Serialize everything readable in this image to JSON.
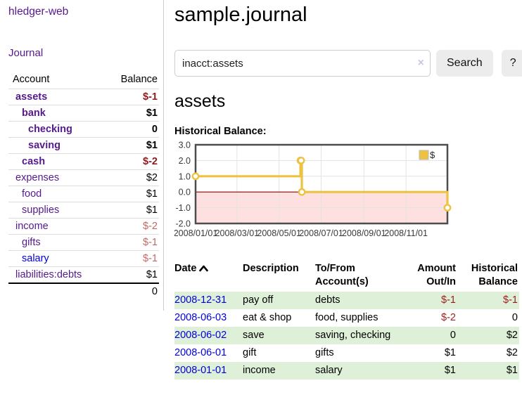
{
  "app": {
    "title": "hledger-web"
  },
  "sidebar": {
    "journal_label": "Journal",
    "accounts_table": {
      "headers": {
        "account": "Account",
        "balance": "Balance"
      },
      "rows": [
        {
          "account": "assets",
          "level": 0,
          "emph": true,
          "blue": false,
          "balance": "$-1",
          "neg": true
        },
        {
          "account": "bank",
          "level": 1,
          "emph": true,
          "blue": false,
          "balance": "$1",
          "neg": false
        },
        {
          "account": "checking",
          "level": 2,
          "emph": true,
          "blue": false,
          "balance": "0",
          "neg": false
        },
        {
          "account": "saving",
          "level": 2,
          "emph": true,
          "blue": false,
          "balance": "$1",
          "neg": false
        },
        {
          "account": "cash",
          "level": 1,
          "emph": true,
          "blue": false,
          "balance": "$-2",
          "neg": true
        },
        {
          "account": "expenses",
          "level": 0,
          "emph": false,
          "blue": false,
          "balance": "$2",
          "neg": false
        },
        {
          "account": "food",
          "level": 1,
          "emph": false,
          "blue": false,
          "balance": "$1",
          "neg": false
        },
        {
          "account": "supplies",
          "level": 1,
          "emph": false,
          "blue": false,
          "balance": "$1",
          "neg": false
        },
        {
          "account": "income",
          "level": 0,
          "emph": false,
          "blue": false,
          "balance": "$-2",
          "neg": true
        },
        {
          "account": "gifts",
          "level": 1,
          "emph": false,
          "blue": false,
          "balance": "$-1",
          "neg": true
        },
        {
          "account": "salary",
          "level": 1,
          "emph": false,
          "blue": true,
          "balance": "$-1",
          "neg": true
        },
        {
          "account": "liabilities:debts",
          "level": 0,
          "emph": false,
          "blue": false,
          "balance": "$1",
          "neg": false
        }
      ],
      "total": "0"
    }
  },
  "main": {
    "title": "sample.journal",
    "search": {
      "value": "inacct:assets",
      "clear_icon": "×",
      "button_label": "Search",
      "help_label": "?"
    },
    "account_heading": "assets",
    "chart_heading": "Historical Balance:",
    "register_table": {
      "headers": {
        "date": "Date",
        "description": "Description",
        "tofrom": "To/From Account(s)",
        "amount": "Amount Out/In",
        "historical": "Historical Balance"
      },
      "rows": [
        {
          "date": "2008-12-31",
          "description": "pay off",
          "accounts": "debts",
          "amount": "$-1",
          "amount_neg": true,
          "balance": "$-1",
          "balance_neg": true
        },
        {
          "date": "2008-06-03",
          "description": "eat & shop",
          "accounts": "food, supplies",
          "amount": "$-2",
          "amount_neg": true,
          "balance": "0",
          "balance_neg": false
        },
        {
          "date": "2008-06-02",
          "description": "save",
          "accounts": "saving, checking",
          "amount": "0",
          "amount_neg": false,
          "balance": "$2",
          "balance_neg": false
        },
        {
          "date": "2008-06-01",
          "description": "gift",
          "accounts": "gifts",
          "amount": "$1",
          "amount_neg": false,
          "balance": "$2",
          "balance_neg": false
        },
        {
          "date": "2008-01-01",
          "description": "income",
          "accounts": "salary",
          "amount": "$1",
          "amount_neg": false,
          "balance": "$1",
          "balance_neg": false
        }
      ]
    }
  },
  "chart_data": {
    "type": "line",
    "title": "Historical Balance:",
    "step": true,
    "series": [
      {
        "name": "$",
        "color": "#edc240",
        "points": [
          [
            "2008-01-01",
            1
          ],
          [
            "2008-06-01",
            2
          ],
          [
            "2008-06-02",
            2
          ],
          [
            "2008-06-03",
            0
          ],
          [
            "2008-12-31",
            -1
          ]
        ]
      }
    ],
    "x_range": [
      "2008-01-01",
      "2008-12-31"
    ],
    "x_ticks": [
      "2008/01/01",
      "2008/03/01",
      "2008/05/01",
      "2008/07/01",
      "2008/09/01",
      "2008/11/01"
    ],
    "y_ticks": [
      3.0,
      2.0,
      1.0,
      0.0,
      -1.0,
      -2.0
    ],
    "ylim": [
      -2,
      3
    ],
    "grid": true,
    "negative_region_color": "rgba(255,0,0,0.12)",
    "zero_line_color": "#8b0000",
    "border_color": "#4d4d4d",
    "grid_color": "#e3e3e3",
    "legend": {
      "label": "$",
      "position": "top-right"
    }
  }
}
